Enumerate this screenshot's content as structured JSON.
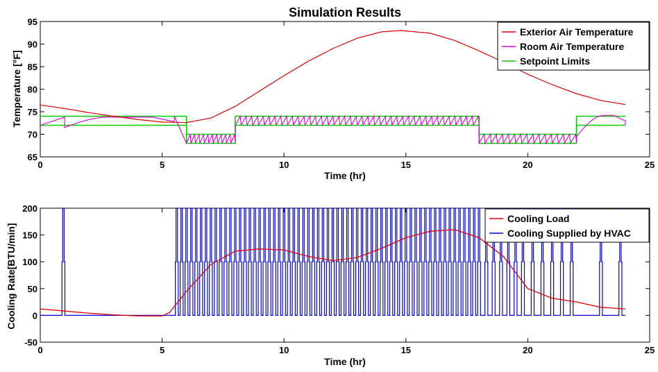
{
  "chart_data": [
    {
      "type": "line",
      "title": "Simulation Results",
      "xlabel": "Time (hr)",
      "ylabel": "Temperature [°F]",
      "xlim": [
        0,
        25
      ],
      "ylim": [
        65,
        95
      ],
      "xticks": [
        0,
        5,
        10,
        15,
        20,
        25
      ],
      "yticks": [
        65,
        70,
        75,
        80,
        85,
        90,
        95
      ],
      "grid": false,
      "legend_position": "top-right",
      "series": [
        {
          "name": "Exterior Air Temperature",
          "color": "#e00000",
          "x": [
            0,
            1,
            2,
            3,
            4,
            5,
            6,
            7,
            8,
            9,
            10,
            11,
            12,
            13,
            14,
            14.8,
            16,
            17,
            18,
            19,
            20,
            21,
            22,
            23,
            24
          ],
          "y": [
            76.5,
            75.7,
            74.8,
            74.0,
            73.3,
            72.7,
            72.6,
            73.6,
            76.2,
            79.6,
            83.0,
            86.2,
            89.0,
            91.3,
            92.7,
            93.0,
            92.4,
            90.8,
            88.5,
            86.0,
            83.3,
            81.0,
            79.0,
            77.5,
            76.6
          ]
        },
        {
          "name": "Room Air Temperature",
          "color": "#e000e0",
          "note": "oscillates between setpoint limits; below values are band envelopes",
          "segments": [
            {
              "x": [
                0,
                1.0
              ],
              "y": [
                72,
                73.8
              ]
            },
            {
              "x": [
                1.0,
                5.5
              ],
              "y": [
                71.5,
                73.8
              ],
              "shape": "slow-rise"
            },
            {
              "x": [
                6.0,
                8.0
              ],
              "low": 68,
              "high": 70,
              "cycles": 11
            },
            {
              "x": [
                8.0,
                18.0
              ],
              "low": 72,
              "high": 74,
              "cycles": 42
            },
            {
              "x": [
                18.0,
                22.0
              ],
              "low": 68,
              "high": 70,
              "cycles": 16
            },
            {
              "x": [
                22.0,
                24.0
              ],
              "y": [
                69.5,
                74.2
              ],
              "shape": "recover"
            }
          ]
        },
        {
          "name": "Setpoint Limits",
          "color": "#00cc00",
          "lower": {
            "x": [
              0,
              6,
              6,
              8,
              8,
              18,
              18,
              22,
              22,
              24
            ],
            "y": [
              72,
              72,
              68,
              68,
              72,
              72,
              68,
              68,
              72,
              72
            ]
          },
          "upper": {
            "x": [
              0,
              6,
              6,
              8,
              8,
              18,
              18,
              22,
              22,
              24
            ],
            "y": [
              74,
              74,
              70,
              70,
              74,
              74,
              70,
              70,
              74,
              74
            ]
          }
        }
      ]
    },
    {
      "type": "line",
      "title": "",
      "xlabel": "Time (hr)",
      "ylabel": "Cooling Rate[BTU/min]",
      "xlim": [
        0,
        25
      ],
      "ylim": [
        -50,
        200
      ],
      "xticks": [
        0,
        5,
        10,
        15,
        20,
        25
      ],
      "yticks": [
        -50,
        0,
        50,
        100,
        150,
        200
      ],
      "grid": false,
      "legend_position": "top-right",
      "series": [
        {
          "name": "Cooling Load",
          "color": "#e00000",
          "x": [
            0,
            1,
            2,
            3,
            4,
            5,
            5.3,
            6,
            7,
            8,
            9,
            10,
            11,
            12,
            13,
            14,
            15,
            16,
            17,
            18,
            19,
            20,
            21,
            22,
            23,
            24
          ],
          "y": [
            12,
            8,
            4,
            1,
            -1,
            -1,
            5,
            45,
            95,
            120,
            124,
            122,
            110,
            102,
            108,
            125,
            145,
            157,
            160,
            145,
            110,
            50,
            32,
            25,
            15,
            12
          ]
        },
        {
          "name": "Cooling Supplied by HVAC",
          "color": "#0000dd",
          "note": "on/off pulses of 0 / 100 / 200 BTU/min",
          "pulse_times": [
            0.95,
            5.6,
            5.8,
            6.0,
            6.2,
            6.4,
            6.6,
            6.8,
            7.0,
            7.2,
            7.4,
            7.6,
            7.8,
            8.0,
            8.2,
            8.4,
            8.6,
            8.8,
            9.0,
            9.2,
            9.4,
            9.6,
            9.8,
            10.0,
            10.2,
            10.4,
            10.6,
            10.8,
            11.0,
            11.2,
            11.4,
            11.6,
            11.8,
            12.0,
            12.2,
            12.4,
            12.6,
            12.8,
            13.0,
            13.2,
            13.4,
            13.6,
            13.8,
            14.0,
            14.2,
            14.4,
            14.6,
            14.8,
            15.0,
            15.2,
            15.4,
            15.6,
            15.8,
            16.0,
            16.2,
            16.4,
            16.6,
            16.8,
            17.0,
            17.2,
            17.4,
            17.6,
            17.8,
            18.0,
            18.3,
            18.6,
            18.9,
            19.2,
            19.5,
            19.8,
            20.2,
            20.6,
            21.0,
            21.4,
            21.8,
            23.0,
            23.8
          ],
          "high": 200,
          "step": 100,
          "low": 0
        }
      ]
    }
  ]
}
